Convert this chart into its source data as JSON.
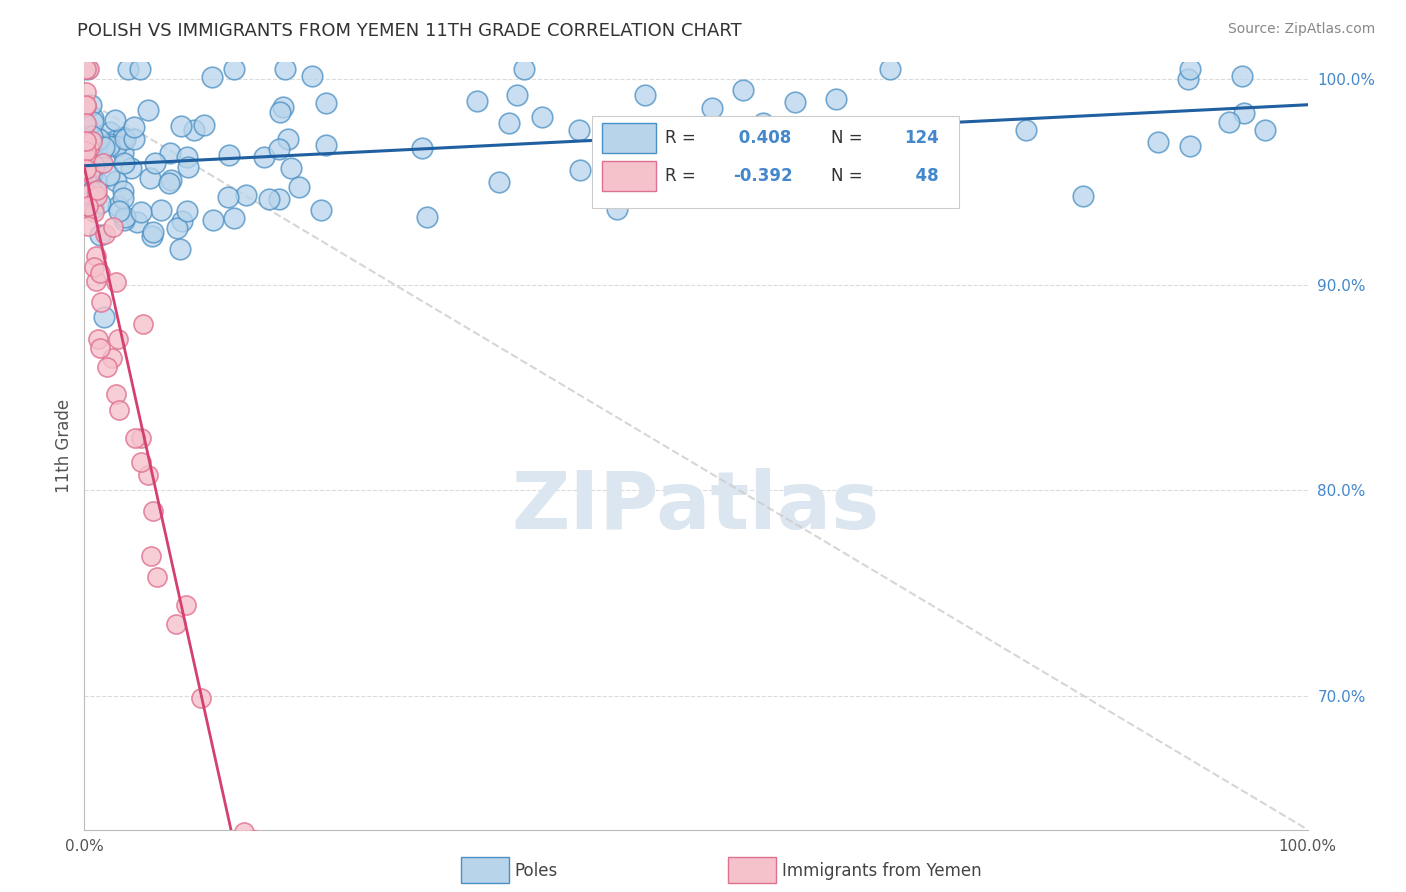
{
  "title": "POLISH VS IMMIGRANTS FROM YEMEN 11TH GRADE CORRELATION CHART",
  "source_text": "Source: ZipAtlas.com",
  "ylabel": "11th Grade",
  "xlim": [
    0.0,
    1.0
  ],
  "ylim": [
    0.635,
    1.008
  ],
  "yticks": [
    0.7,
    0.8,
    0.9,
    1.0
  ],
  "ytick_labels": [
    "70.0%",
    "80.0%",
    "90.0%",
    "100.0%"
  ],
  "xtick_labels": [
    "0.0%",
    "100.0%"
  ],
  "xticks": [
    0.0,
    1.0
  ],
  "blue_R": 0.408,
  "blue_N": 124,
  "pink_R": -0.392,
  "pink_N": 48,
  "legend_label_blue": "Poles",
  "legend_label_pink": "Immigrants from Yemen",
  "blue_face_color": "#b8d4eb",
  "blue_edge_color": "#4a90c4",
  "pink_face_color": "#f5c2cc",
  "pink_edge_color": "#e07090",
  "blue_line_color": "#2060a0",
  "pink_line_color": "#d44070",
  "diagonal_color": "#cccccc",
  "watermark": "ZIPatlas",
  "watermark_color": "#dce6f0",
  "background_color": "#ffffff",
  "grid_color": "#cccccc",
  "ytick_color": "#4488cc",
  "title_color": "#333333",
  "source_color": "#888888"
}
